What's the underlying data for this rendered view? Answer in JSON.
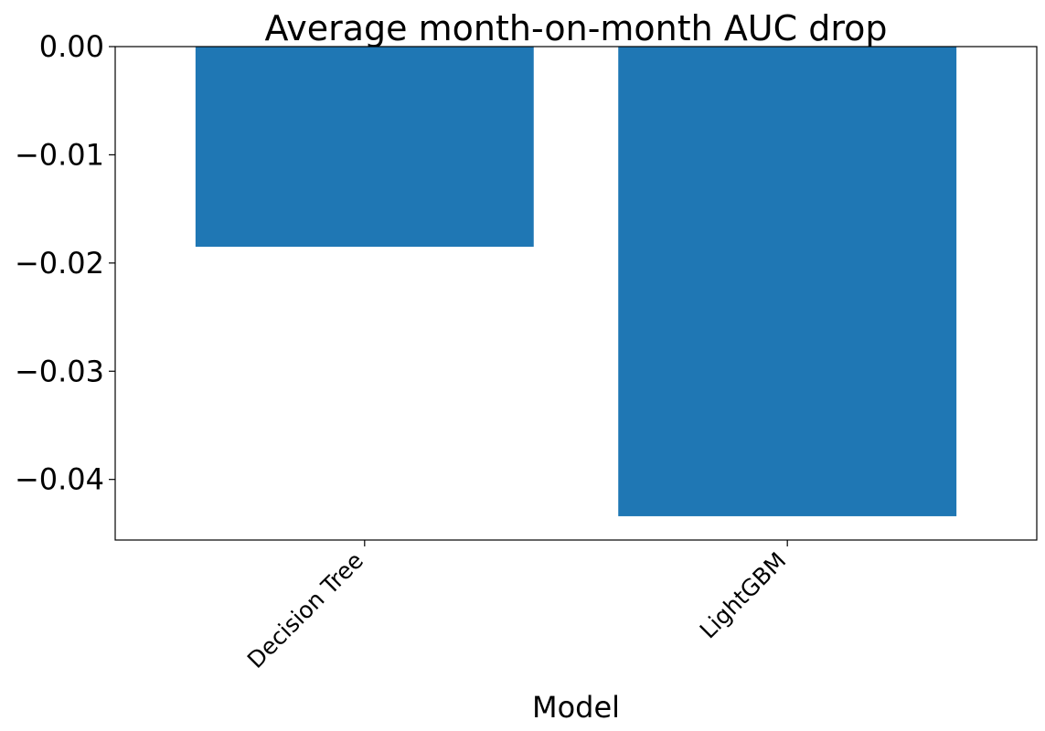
{
  "chart_data": {
    "type": "bar",
    "title": "Average month-on-month AUC drop",
    "xlabel": "Model",
    "ylabel": "",
    "categories": [
      "Decision Tree",
      "LightGBM"
    ],
    "values": [
      -0.0185,
      -0.0434
    ],
    "ylim": [
      -0.0456,
      0.0
    ],
    "yticks": [
      0.0,
      -0.01,
      -0.02,
      -0.03,
      -0.04
    ],
    "ytick_labels": [
      "0.00",
      "−0.01",
      "−0.02",
      "−0.03",
      "−0.04"
    ],
    "bar_color": "#1f77b4",
    "grid": false,
    "legend": "none"
  }
}
